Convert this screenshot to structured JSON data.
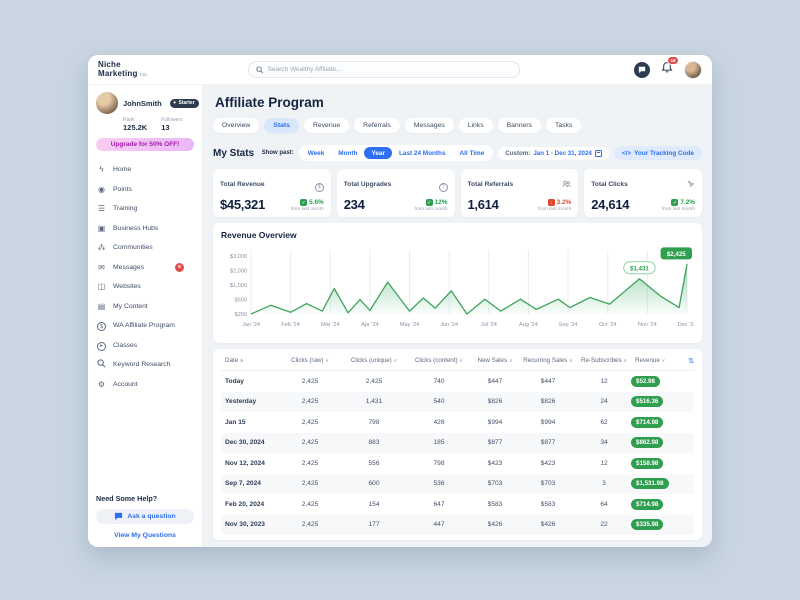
{
  "header": {
    "logo_line1": "Niche",
    "logo_line2": "Marketing",
    "logo_suffix": "co.",
    "search_placeholder": "Search Wealthy Affiliate...",
    "notification_count": "18"
  },
  "sidebar": {
    "profile": {
      "name": "JohnSmith",
      "badge": "Starter",
      "rank_label": "Rank",
      "rank_value": "125.2K",
      "followers_label": "Followers",
      "followers_value": "13"
    },
    "upgrade_label": "Upgrade for 50% OFF!",
    "items": [
      {
        "label": "Home"
      },
      {
        "label": "Points"
      },
      {
        "label": "Training"
      },
      {
        "label": "Business Hubs"
      },
      {
        "label": "Communities"
      },
      {
        "label": "Messages",
        "badge": "9"
      },
      {
        "label": "Websites"
      },
      {
        "label": "My Content"
      },
      {
        "label": "WA Affiliate Program"
      },
      {
        "label": "Classes"
      },
      {
        "label": "Keyword Research"
      },
      {
        "label": "Account"
      }
    ],
    "help": {
      "title": "Need Some Help?",
      "ask_label": "Ask a question",
      "view_label": "View My Questions"
    }
  },
  "main": {
    "title": "Affiliate Program",
    "tabs": [
      {
        "label": "Overview"
      },
      {
        "label": "Stats"
      },
      {
        "label": "Revenue"
      },
      {
        "label": "Referrals"
      },
      {
        "label": "Messages"
      },
      {
        "label": "Links"
      },
      {
        "label": "Banners"
      },
      {
        "label": "Tasks"
      }
    ],
    "active_tab": "Stats",
    "stats": {
      "heading": "My Stats",
      "show_past_label": "Show past:",
      "filters": [
        "Week",
        "Month",
        "Year",
        "Last 24 Months",
        "All Time"
      ],
      "active_filter": "Year",
      "custom_label": "Custom:",
      "custom_range": "Jan 1 - Dec 31, 2024",
      "tracking_icon": "</>",
      "tracking_code_label": "Your Tracking Code"
    },
    "cards": [
      {
        "label": "Total Revenue",
        "value": "$45,321",
        "change": "5.6%",
        "direction": "up",
        "footnote": "from last month",
        "icon": "dollar-circle"
      },
      {
        "label": "Total Upgrades",
        "value": "234",
        "change": "12%",
        "direction": "up",
        "footnote": "from last month",
        "icon": "question-circle"
      },
      {
        "label": "Total Referrals",
        "value": "1,614",
        "change": "3.2%",
        "direction": "down",
        "footnote": "from last month",
        "icon": "people"
      },
      {
        "label": "Total Clicks",
        "value": "24,614",
        "change": "7.2%",
        "direction": "up",
        "footnote": "from last month",
        "icon": "cursor-click"
      }
    ]
  },
  "chart_data": {
    "type": "area",
    "title": "Revenue Overview",
    "x_ticks": [
      "Jan '24",
      "Feb '24",
      "Mar '24",
      "Apr '24",
      "May '24",
      "Jun '24",
      "Jul '24",
      "Aug '24",
      "Sep '24",
      "Oct '24",
      "Nov '24",
      "Dec '24"
    ],
    "y_ticks": [
      "$3,000",
      "$2,000",
      "$1,000",
      "$500",
      "$250"
    ],
    "y_levels": [
      3000,
      2000,
      1000,
      500,
      250
    ],
    "ylim": [
      250,
      3000
    ],
    "line_color": "#3fa35c",
    "points": [
      [
        0,
        250
      ],
      [
        0.5,
        400
      ],
      [
        1,
        280
      ],
      [
        1.4,
        430
      ],
      [
        1.8,
        300
      ],
      [
        2.1,
        880
      ],
      [
        2.45,
        270
      ],
      [
        2.75,
        500
      ],
      [
        3.0,
        310
      ],
      [
        3.45,
        1200
      ],
      [
        4.0,
        300
      ],
      [
        4.35,
        550
      ],
      [
        4.65,
        350
      ],
      [
        5.05,
        800
      ],
      [
        5.45,
        250
      ],
      [
        5.9,
        510
      ],
      [
        6.3,
        300
      ],
      [
        6.8,
        510
      ],
      [
        7.2,
        330
      ],
      [
        7.75,
        510
      ],
      [
        8.05,
        360
      ],
      [
        8.55,
        570
      ],
      [
        9.05,
        420
      ],
      [
        9.8,
        1431
      ],
      [
        10.35,
        600
      ],
      [
        10.8,
        360
      ],
      [
        11,
        2425
      ]
    ],
    "annotations": [
      {
        "x": 9.8,
        "value": 1431,
        "label": "$1,431",
        "style": "outline"
      },
      {
        "x": 11,
        "value": 2425,
        "label": "$2,425",
        "style": "solid"
      }
    ]
  },
  "table": {
    "columns": [
      {
        "label": "Date",
        "sort": "asc"
      },
      {
        "label": "Clicks (raw)",
        "sort": "desc"
      },
      {
        "label": "Clicks (unique)",
        "sort": "desc"
      },
      {
        "label": "Clicks (content)",
        "sort": "desc"
      },
      {
        "label": "New Sales",
        "sort": "desc"
      },
      {
        "label": "Recurring Sales",
        "sort": "desc"
      },
      {
        "label": "Re-Subscribes",
        "sort": "desc"
      },
      {
        "label": "Revenue",
        "sort": "desc"
      }
    ],
    "rows": [
      {
        "date": "Today",
        "cells": [
          "2,425",
          "2,425",
          "740",
          "$447",
          "$447",
          "12"
        ],
        "revenue": "$52.98"
      },
      {
        "date": "Yesterday",
        "cells": [
          "2,425",
          "1,431",
          "540",
          "$826",
          "$826",
          "24"
        ],
        "revenue": "$516.36"
      },
      {
        "date": "Jan 15",
        "cells": [
          "2,425",
          "798",
          "426",
          "$994",
          "$994",
          "62"
        ],
        "revenue": "$714.98"
      },
      {
        "date": "Dec 30, 2024",
        "cells": [
          "2,425",
          "883",
          "185",
          "$877",
          "$877",
          "34"
        ],
        "revenue": "$862.98"
      },
      {
        "date": "Nov 12, 2024",
        "cells": [
          "2,425",
          "556",
          "798",
          "$423",
          "$423",
          "12"
        ],
        "revenue": "$158.98"
      },
      {
        "date": "Sep 7, 2024",
        "cells": [
          "2,425",
          "600",
          "536",
          "$703",
          "$703",
          "3"
        ],
        "revenue": "$1,531.98"
      },
      {
        "date": "Feb 20, 2024",
        "cells": [
          "2,425",
          "154",
          "647",
          "$583",
          "$583",
          "64"
        ],
        "revenue": "$714.98"
      },
      {
        "date": "Nov 30, 2023",
        "cells": [
          "2,425",
          "177",
          "447",
          "$426",
          "$426",
          "22"
        ],
        "revenue": "$335.98"
      }
    ]
  }
}
